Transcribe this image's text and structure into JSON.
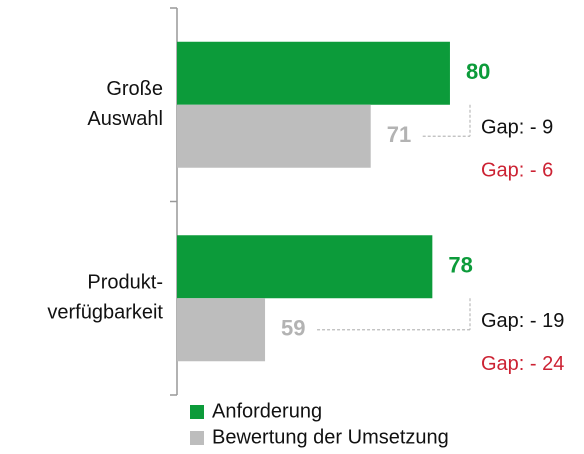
{
  "chart_data": {
    "type": "bar",
    "orientation": "horizontal",
    "categories": [
      [
        "Große",
        "Auswahl"
      ],
      [
        "Produkt-",
        "verfügbarkeit"
      ]
    ],
    "series": [
      {
        "name": "Anforderung",
        "color": "#0c9b3a",
        "label_color": "#0c9b3a",
        "values": [
          80,
          78
        ]
      },
      {
        "name": "Bewertung der Umsetzung",
        "color": "#bdbdbd",
        "label_color": "#b3b3b3",
        "values": [
          71,
          59
        ]
      }
    ],
    "xlim": [
      49,
      90
    ],
    "annotations": [
      [
        {
          "text": "Gap: - 9",
          "color": "#111111"
        },
        {
          "text": "Gap: - 6",
          "color": "#cc2233"
        }
      ],
      [
        {
          "text": "Gap: - 19",
          "color": "#111111"
        },
        {
          "text": "Gap: - 24",
          "color": "#cc2233"
        }
      ]
    ]
  }
}
